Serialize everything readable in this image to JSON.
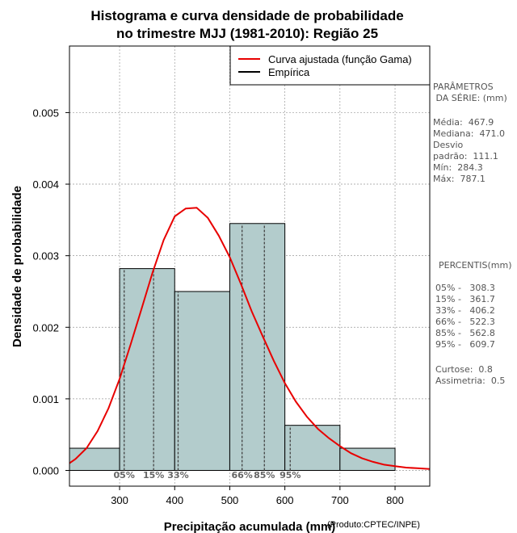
{
  "chart_data": {
    "type": "histogram",
    "title_line1": "Histograma e curva densidade de probabilidade",
    "title_line2": "no trimestre MJJ (1981-2010): Região 25",
    "xlabel": "Precipitação acumulada (mm)",
    "ylabel": "Densidade de probabilidade",
    "credit": "(Produto:CPTEC/INPE)",
    "xlim": [
      209,
      863
    ],
    "ylim": [
      -0.00022,
      0.00593
    ],
    "x_ticks": [
      300,
      400,
      500,
      600,
      700,
      800
    ],
    "x_tick_labels": [
      "300",
      "400",
      "500",
      "600",
      "700",
      "800"
    ],
    "y_ticks": [
      0,
      0.001,
      0.002,
      0.003,
      0.004,
      0.005
    ],
    "y_tick_labels": [
      "0.000",
      "0.001",
      "0.002",
      "0.003",
      "0.004",
      "0.005"
    ],
    "grid": true,
    "bars": [
      {
        "x0": 200,
        "x1": 300,
        "value": 0.00031
      },
      {
        "x0": 300,
        "x1": 400,
        "value": 0.00282
      },
      {
        "x0": 400,
        "x1": 500,
        "value": 0.0025
      },
      {
        "x0": 500,
        "x1": 600,
        "value": 0.00345
      },
      {
        "x0": 600,
        "x1": 700,
        "value": 0.00063
      },
      {
        "x0": 700,
        "x1": 800,
        "value": 0.00031
      }
    ],
    "curve": {
      "name": "Curva ajustada (função Gama)",
      "x": [
        209,
        220,
        240,
        260,
        280,
        300,
        320,
        340,
        360,
        380,
        400,
        420,
        440,
        460,
        480,
        500,
        520,
        540,
        560,
        580,
        600,
        620,
        640,
        660,
        680,
        700,
        720,
        740,
        760,
        780,
        800,
        820,
        840,
        863
      ],
      "y": [
        0.0001,
        0.00016,
        0.00031,
        0.00055,
        0.00087,
        0.00128,
        0.00176,
        0.00226,
        0.00277,
        0.00322,
        0.00355,
        0.00366,
        0.00367,
        0.00353,
        0.00328,
        0.00298,
        0.00261,
        0.00222,
        0.00187,
        0.00153,
        0.00122,
        0.00096,
        0.00075,
        0.00058,
        0.00045,
        0.00034,
        0.00024,
        0.00017,
        0.00012,
        8e-05,
        6e-05,
        4e-05,
        3e-05,
        2e-05
      ]
    },
    "legend": [
      {
        "label": "Curva ajustada (função Gama)",
        "color": "#e80000"
      },
      {
        "label": "Empírica",
        "color": "#000000"
      }
    ],
    "legend_position": "top-right",
    "percentiles": [
      {
        "label": "05%",
        "x": 308.3
      },
      {
        "label": "15%",
        "x": 361.7
      },
      {
        "label": "33%",
        "x": 406.2
      },
      {
        "label": "66%",
        "x": 522.3
      },
      {
        "label": "85%",
        "x": 562.8
      },
      {
        "label": "95%",
        "x": 609.7
      }
    ],
    "colors": {
      "bar_fill": "#b3cccc",
      "curve": "#e80000",
      "grid": "#999999",
      "percentile_line": "#444444"
    }
  },
  "side_panel": {
    "params_title": "PARÂMETROS\n DA SÉRIE: (mm)",
    "params_body": "Média:  467.9\nMediana:  471.0\nDesvio\npadrão:  111.1\nMín:  284.3\nMáx:  787.1",
    "pct_title": "PERCENTIS(mm)",
    "pct_body": "05% -   308.3\n15% -   361.7\n33% -   406.2\n66% -   522.3\n85% -   562.8\n95% -   609.7",
    "stats_body": "Curtose:  0.8\nAssimetria:  0.5"
  }
}
